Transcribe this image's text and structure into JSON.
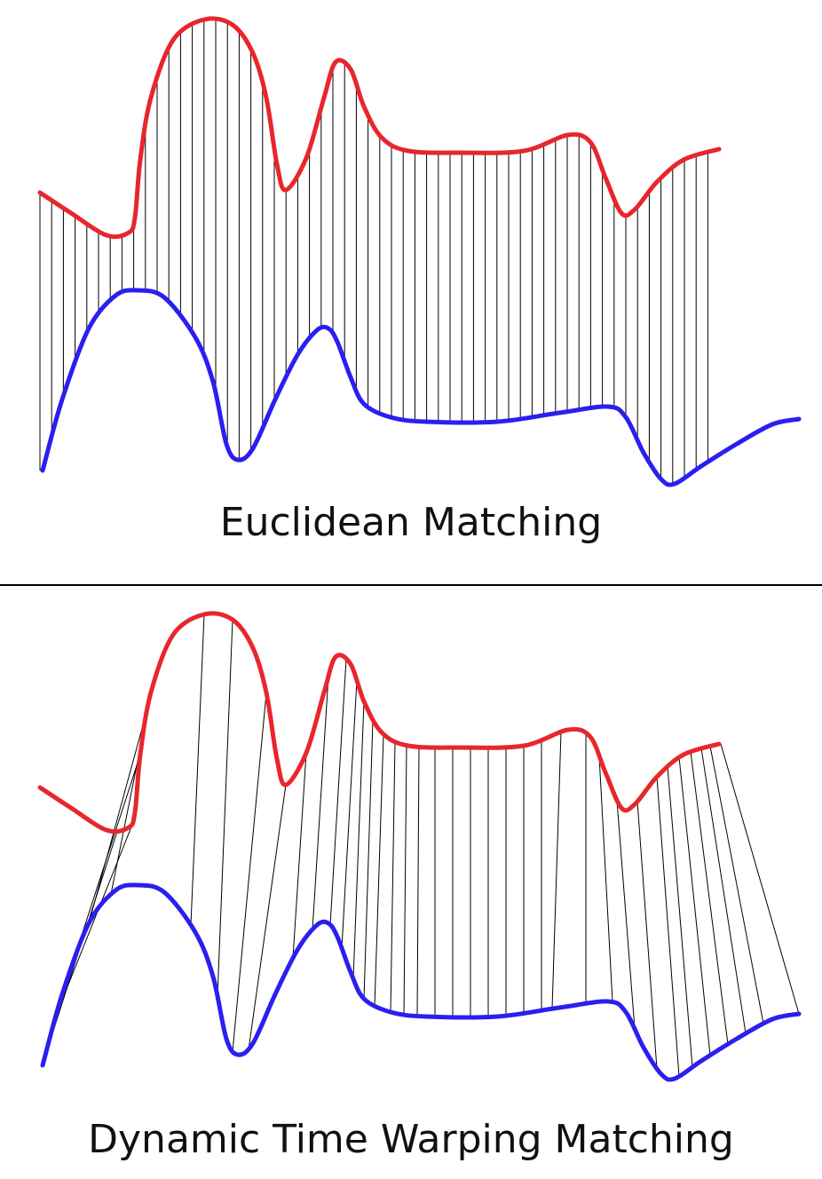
{
  "panels": [
    {
      "id": "euclidean",
      "caption": "Euclidean Matching"
    },
    {
      "id": "dtw",
      "caption": "Dynamic Time Warping Matching"
    }
  ],
  "colors": {
    "upper_series": "#e8262b",
    "lower_series": "#2a1ff0",
    "connector": "#000000",
    "divider": "#000000"
  }
}
